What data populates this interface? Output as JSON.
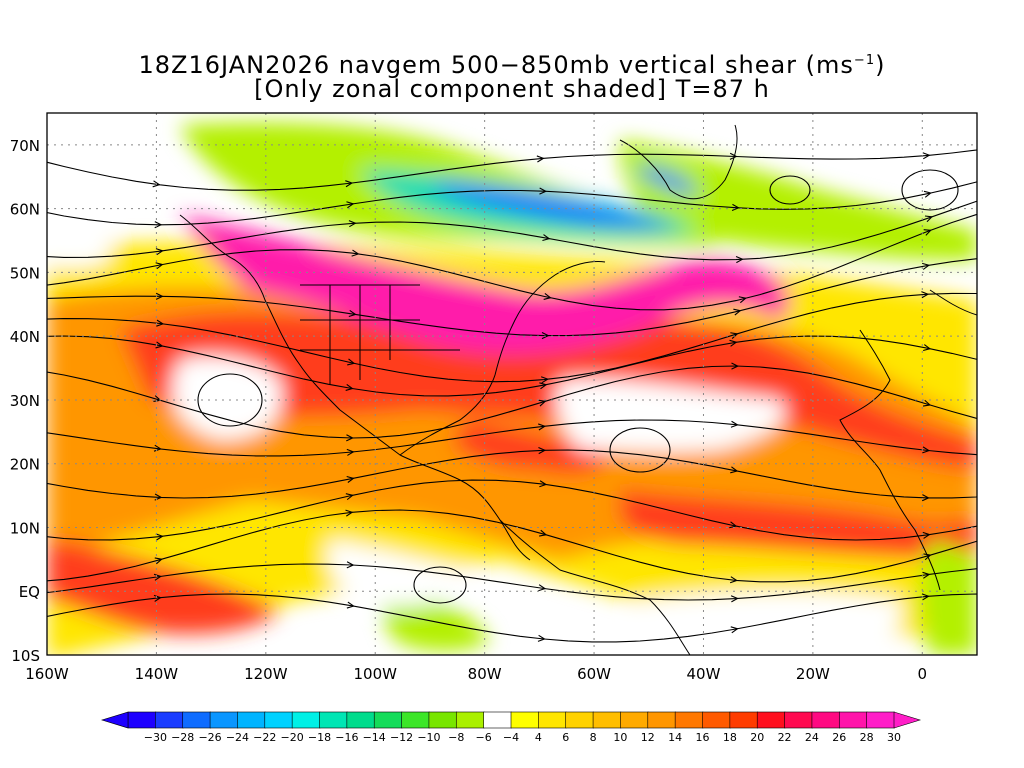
{
  "title": {
    "line1_main": "18Z16JAN2026 navgem 500−850mb vertical shear (ms",
    "line1_sup": "−1",
    "line1_end": ")",
    "line2": "[Only zonal component shaded] T=87 h"
  },
  "axes": {
    "lon_labels": [
      "160W",
      "140W",
      "120W",
      "100W",
      "80W",
      "60W",
      "40W",
      "20W",
      "0"
    ],
    "lat_labels": [
      "70N",
      "60N",
      "50N",
      "40N",
      "30N",
      "20N",
      "10N",
      "EQ",
      "10S"
    ]
  },
  "colorbar": {
    "labels": [
      "−30",
      "−28",
      "−26",
      "−24",
      "−22",
      "−20",
      "−18",
      "−16",
      "−14",
      "−12",
      "−10",
      "−8",
      "−6",
      "−4",
      "4",
      "6",
      "8",
      "10",
      "12",
      "14",
      "16",
      "18",
      "20",
      "22",
      "24",
      "26",
      "28",
      "30"
    ],
    "colors": [
      "#1e00ff",
      "#1a3cff",
      "#0f6cff",
      "#0a96ff",
      "#00b4ff",
      "#00d2ff",
      "#00f0e6",
      "#00e6b4",
      "#00dc8c",
      "#14dc5a",
      "#3ce628",
      "#78e600",
      "#aaf000",
      "#ffffff",
      "#ffff00",
      "#ffe600",
      "#ffd200",
      "#ffbe00",
      "#ffaa00",
      "#ff9600",
      "#ff7800",
      "#ff5a00",
      "#ff3c00",
      "#ff0f1e",
      "#ff0a50",
      "#ff0a82",
      "#ff14aa",
      "#ff1ec8"
    ]
  },
  "colors": {
    "pink": "#ff1eaa",
    "red": "#ff3c1e",
    "orange": "#ff9600",
    "yellow": "#ffe600",
    "lime": "#b4f000",
    "green": "#3ce646",
    "teal": "#14dcb4",
    "blue": "#1478ff"
  }
}
